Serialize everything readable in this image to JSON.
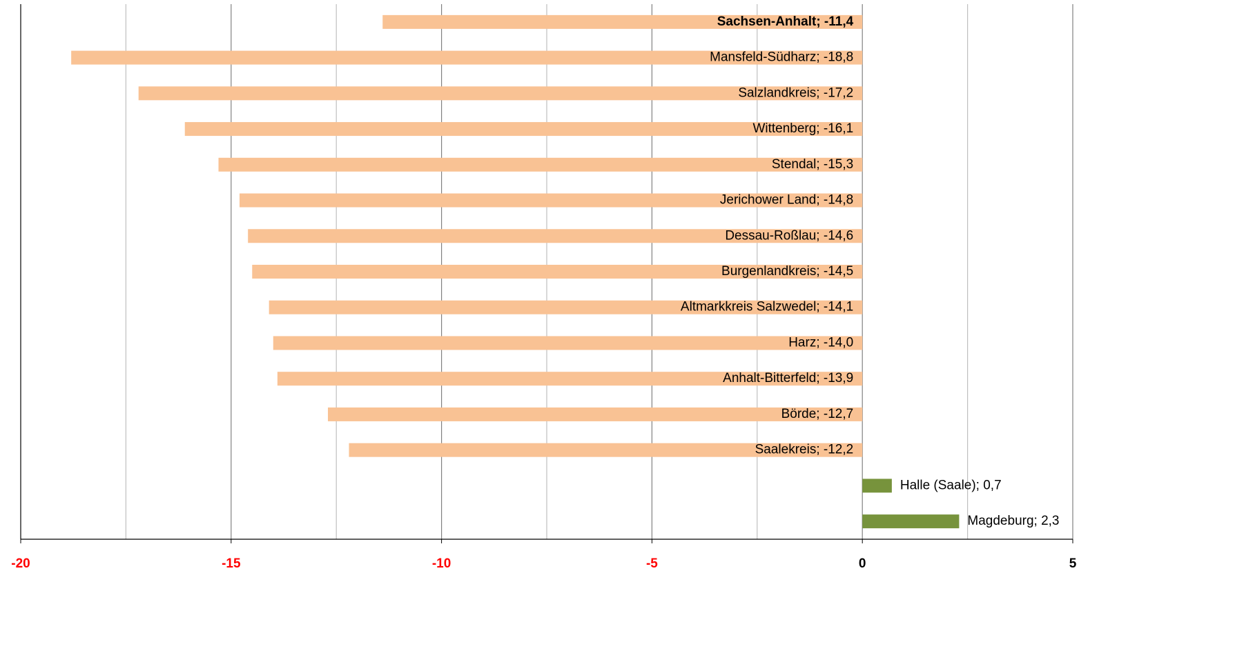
{
  "chart_data": {
    "type": "hbar",
    "categories": [
      "Sachsen-Anhalt; -11,4",
      "Mansfeld-Südharz; -18,8",
      "Salzlandkreis; -17,2",
      "Wittenberg; -16,1",
      "Stendal; -15,3",
      "Jerichower Land; -14,8",
      "Dessau-Roßlau; -14,6",
      "Burgenlandkreis; -14,5",
      "Altmarkkreis Salzwedel; -14,1",
      "Harz; -14,0",
      "Anhalt-Bitterfeld; -13,9",
      "Börde; -12,7",
      "Saalekreis; -12,2",
      "Halle (Saale); 0,7",
      "Magdeburg; 2,3"
    ],
    "values": [
      -11.4,
      -18.8,
      -17.2,
      -16.1,
      -15.3,
      -14.8,
      -14.6,
      -14.5,
      -14.1,
      -14.0,
      -13.9,
      -12.7,
      -12.2,
      0.7,
      2.3
    ],
    "colors": [
      "#f9c294",
      "#f9c294",
      "#f9c294",
      "#f9c294",
      "#f9c294",
      "#f9c294",
      "#f9c294",
      "#f9c294",
      "#f9c294",
      "#f9c294",
      "#f9c294",
      "#f9c294",
      "#f9c294",
      "#77933c",
      "#77933c"
    ],
    "bold_categories": [
      0
    ],
    "xlim": [
      -20,
      5
    ],
    "xticks": [
      -20,
      -15,
      -10,
      -5,
      0,
      5
    ],
    "xtick_colors": [
      "#ff0000",
      "#ff0000",
      "#ff0000",
      "#ff0000",
      "#000000",
      "#000000"
    ],
    "minor_xticks": [
      -17.5,
      -12.5,
      -7.5,
      -2.5,
      2.5
    ],
    "grid": true
  }
}
